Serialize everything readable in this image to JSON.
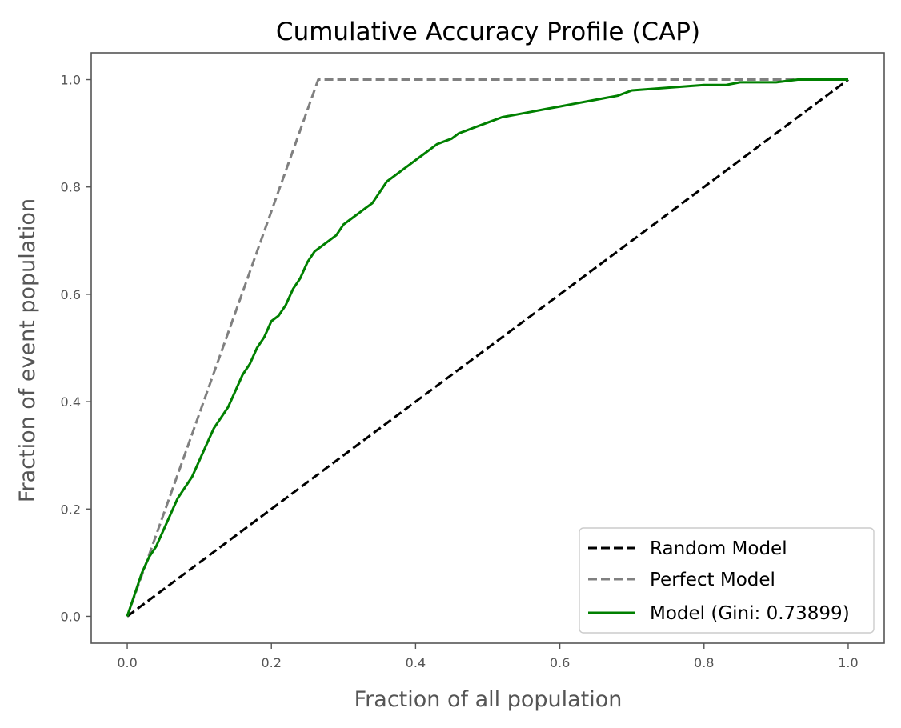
{
  "chart_data": {
    "type": "line",
    "title": "Cumulative Accuracy Profile (CAP)",
    "xlabel": "Fraction of all population",
    "ylabel": "Fraction of event population",
    "xlim": [
      -0.05,
      1.05
    ],
    "ylim": [
      -0.05,
      1.05
    ],
    "xticks": [
      0.0,
      0.2,
      0.4,
      0.6,
      0.8,
      1.0
    ],
    "xtick_labels": [
      "0.0",
      "0.2",
      "0.4",
      "0.6",
      "0.8",
      "1.0"
    ],
    "yticks": [
      0.0,
      0.2,
      0.4,
      0.6,
      0.8,
      1.0
    ],
    "ytick_labels": [
      "0.0",
      "0.2",
      "0.4",
      "0.6",
      "0.8",
      "1.0"
    ],
    "grid": false,
    "legend_position": "bottom-right",
    "series": [
      {
        "name": "Random Model",
        "style": "dashed",
        "color": "#000000",
        "x": [
          0.0,
          1.0
        ],
        "y": [
          0.0,
          1.0
        ]
      },
      {
        "name": "Perfect Model",
        "style": "dashed",
        "color": "#808080",
        "x": [
          0.0,
          0.265,
          1.0
        ],
        "y": [
          0.0,
          1.0,
          1.0
        ]
      },
      {
        "name": "Model (Gini: 0.73899)",
        "style": "solid",
        "color": "#008000",
        "x": [
          0.0,
          0.01,
          0.02,
          0.03,
          0.04,
          0.05,
          0.06,
          0.07,
          0.08,
          0.09,
          0.1,
          0.11,
          0.12,
          0.13,
          0.14,
          0.15,
          0.16,
          0.17,
          0.18,
          0.19,
          0.2,
          0.21,
          0.22,
          0.23,
          0.24,
          0.25,
          0.26,
          0.27,
          0.28,
          0.29,
          0.3,
          0.31,
          0.32,
          0.33,
          0.34,
          0.35,
          0.36,
          0.37,
          0.38,
          0.39,
          0.4,
          0.41,
          0.42,
          0.43,
          0.44,
          0.45,
          0.46,
          0.47,
          0.48,
          0.5,
          0.52,
          0.54,
          0.56,
          0.58,
          0.6,
          0.62,
          0.64,
          0.66,
          0.68,
          0.7,
          0.75,
          0.8,
          0.83,
          0.85,
          0.9,
          0.93,
          0.96,
          1.0
        ],
        "y": [
          0.0,
          0.04,
          0.08,
          0.11,
          0.13,
          0.16,
          0.19,
          0.22,
          0.24,
          0.26,
          0.29,
          0.32,
          0.35,
          0.37,
          0.39,
          0.42,
          0.45,
          0.47,
          0.5,
          0.52,
          0.55,
          0.56,
          0.58,
          0.61,
          0.63,
          0.66,
          0.68,
          0.69,
          0.7,
          0.71,
          0.73,
          0.74,
          0.75,
          0.76,
          0.77,
          0.79,
          0.81,
          0.82,
          0.83,
          0.84,
          0.85,
          0.86,
          0.87,
          0.88,
          0.885,
          0.89,
          0.9,
          0.905,
          0.91,
          0.92,
          0.93,
          0.935,
          0.94,
          0.945,
          0.95,
          0.955,
          0.96,
          0.965,
          0.97,
          0.98,
          0.985,
          0.99,
          0.99,
          0.995,
          0.995,
          1.0,
          1.0,
          1.0
        ]
      }
    ]
  }
}
